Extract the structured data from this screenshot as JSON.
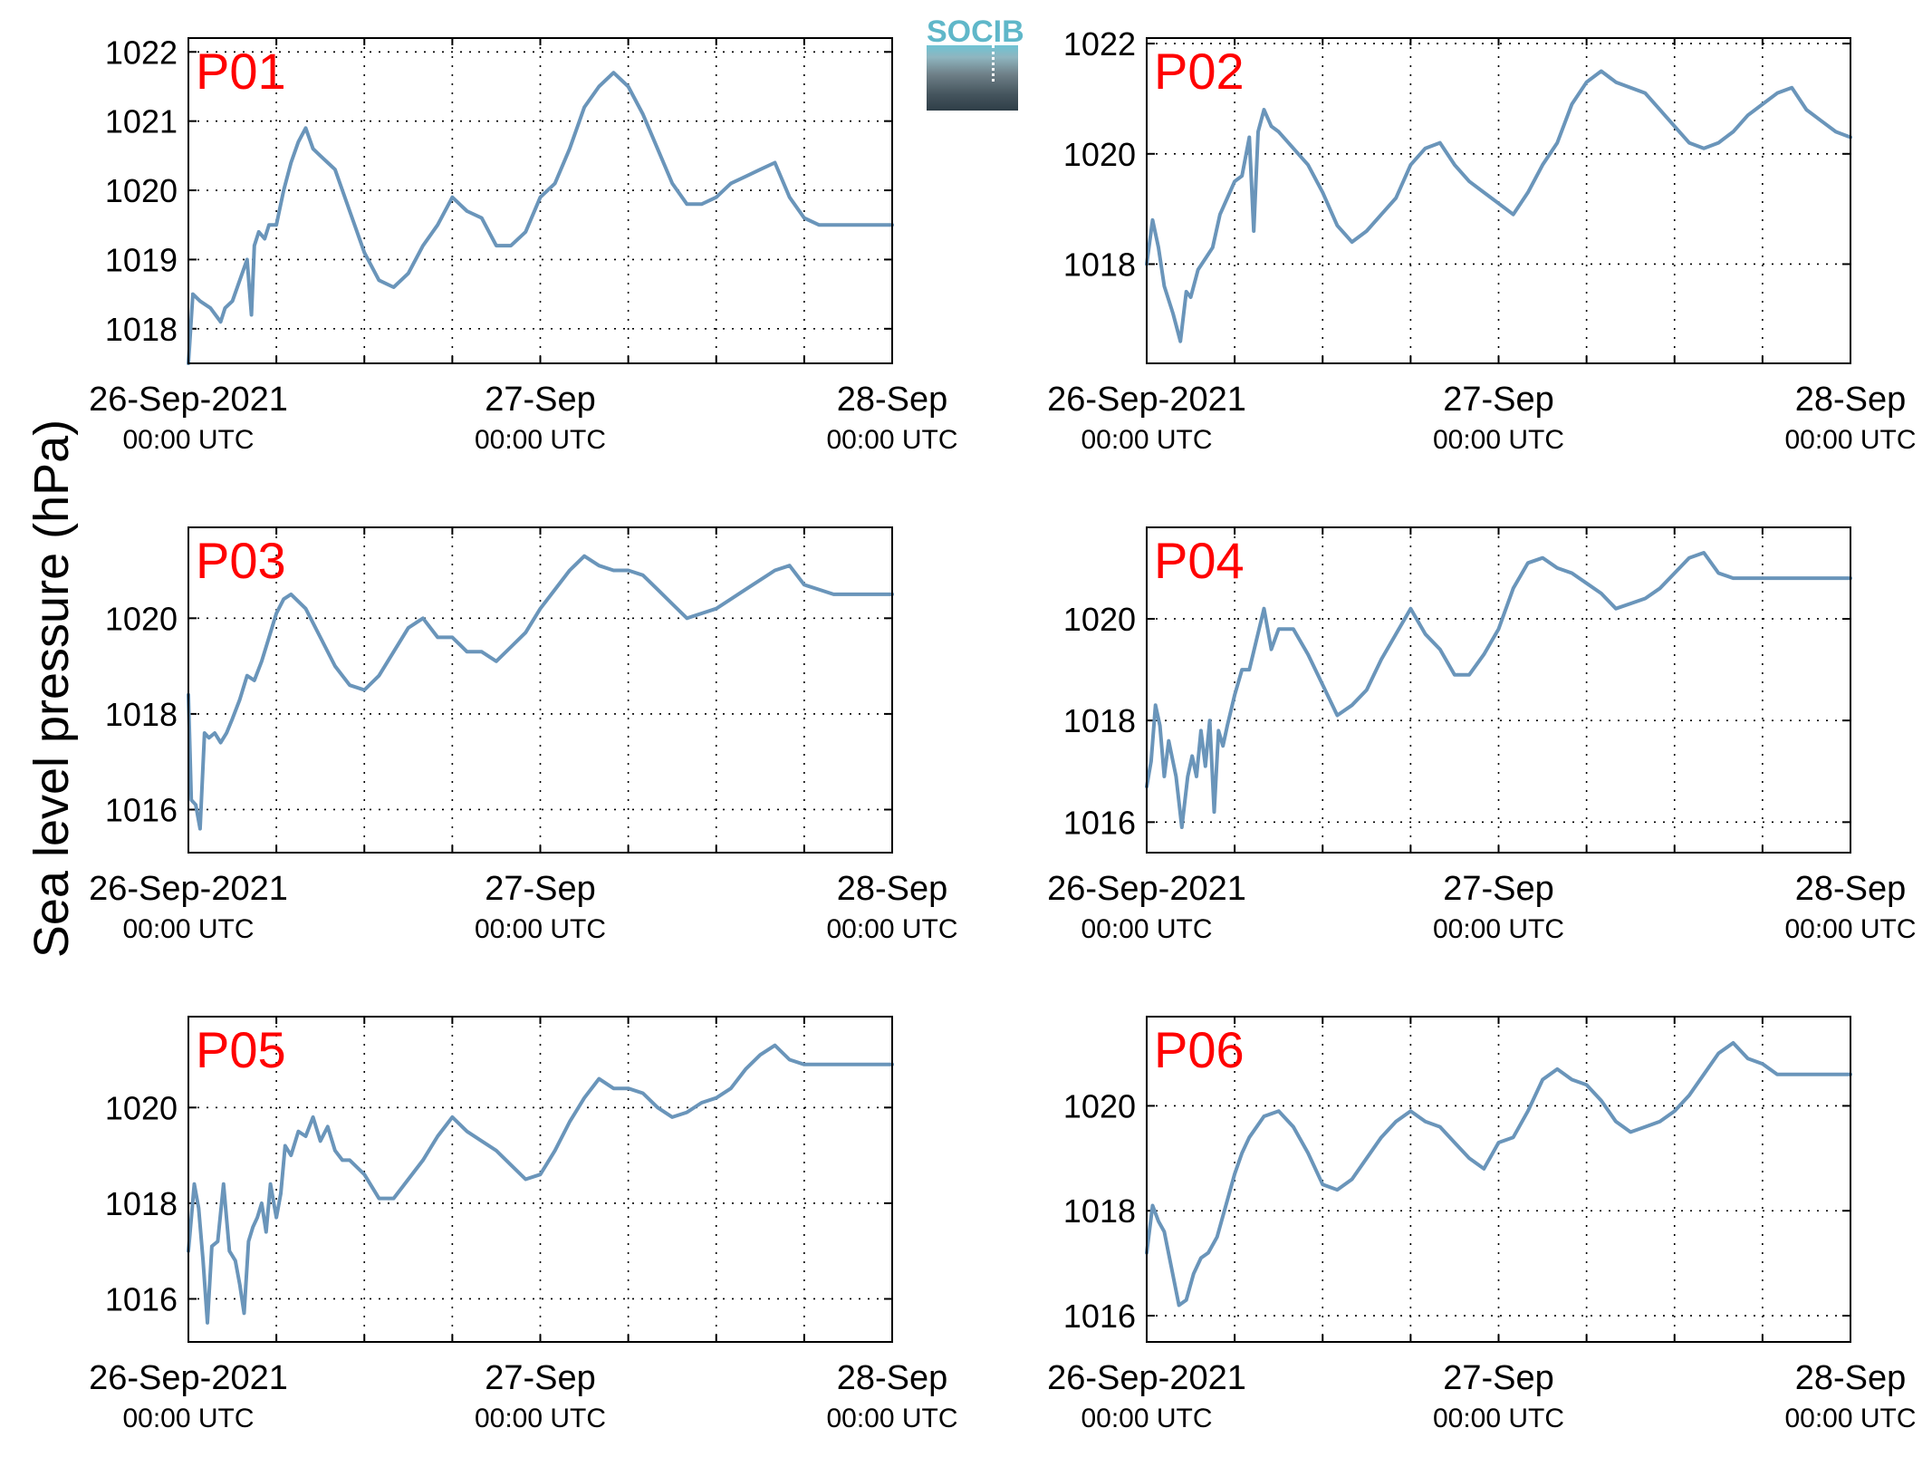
{
  "figure": {
    "ylabel": "Sea level pressure (hPa)",
    "logo_text": "SOCIB",
    "colors": {
      "series": "#6a95ba",
      "panel_label": "#ff0000",
      "axes": "#000000",
      "grid": "#000000"
    }
  },
  "chart_data": [
    {
      "type": "line",
      "label": "P01",
      "xlim": [
        0,
        48
      ],
      "ylim": [
        1017.5,
        1022.2
      ],
      "yticks": [
        1018,
        1019,
        1020,
        1021,
        1022
      ],
      "grid": true,
      "xticks": [
        {
          "x": 0,
          "label": "26-Sep-2021",
          "sublabel": "00:00 UTC"
        },
        {
          "x": 24,
          "label": "27-Sep",
          "sublabel": "00:00 UTC"
        },
        {
          "x": 48,
          "label": "28-Sep",
          "sublabel": "00:00 UTC"
        }
      ],
      "x": [
        0,
        0.3,
        0.8,
        1.5,
        2.2,
        2.5,
        3,
        3.5,
        4,
        4.3,
        4.5,
        4.8,
        5.2,
        5.5,
        6,
        6.5,
        7,
        7.5,
        8,
        8.5,
        9,
        9.5,
        10,
        10.5,
        11,
        12,
        13,
        14,
        15,
        16,
        17,
        18,
        19,
        20,
        21,
        22,
        23,
        24,
        25,
        26,
        27,
        28,
        29,
        30,
        31,
        32,
        33,
        34,
        35,
        36,
        37,
        38,
        39,
        40,
        41,
        42,
        43,
        44,
        45,
        46,
        47,
        48
      ],
      "y": [
        1017.5,
        1018.5,
        1018.4,
        1018.3,
        1018.1,
        1018.3,
        1018.4,
        1018.7,
        1019,
        1018.2,
        1019.2,
        1019.4,
        1019.3,
        1019.5,
        1019.5,
        1020,
        1020.4,
        1020.7,
        1020.9,
        1020.6,
        1020.5,
        1020.4,
        1020.3,
        1020,
        1019.7,
        1019.1,
        1018.7,
        1018.6,
        1018.8,
        1019.2,
        1019.5,
        1019.9,
        1019.7,
        1019.6,
        1019.2,
        1019.2,
        1019.4,
        1019.9,
        1020.1,
        1020.6,
        1021.2,
        1021.5,
        1021.7,
        1021.5,
        1021.1,
        1020.6,
        1020.1,
        1019.8,
        1019.8,
        1019.9,
        1020.1,
        1020.2,
        1020.3,
        1020.4,
        1019.9,
        1019.6,
        1019.5,
        1019.5,
        1019.5,
        1019.5,
        1019.5,
        1019.5
      ]
    },
    {
      "type": "line",
      "label": "P02",
      "xlim": [
        0,
        48
      ],
      "ylim": [
        1016.2,
        1022.1
      ],
      "yticks": [
        1018,
        1020,
        1022
      ],
      "grid": true,
      "xticks": [
        {
          "x": 0,
          "label": "26-Sep-2021",
          "sublabel": "00:00 UTC"
        },
        {
          "x": 24,
          "label": "27-Sep",
          "sublabel": "00:00 UTC"
        },
        {
          "x": 48,
          "label": "28-Sep",
          "sublabel": "00:00 UTC"
        }
      ],
      "x": [
        0,
        0.4,
        0.8,
        1.2,
        1.8,
        2.3,
        2.7,
        3,
        3.5,
        4,
        4.5,
        5,
        5.5,
        6,
        6.5,
        7,
        7.3,
        7.6,
        8,
        8.5,
        9,
        10,
        11,
        12,
        13,
        14,
        15,
        16,
        17,
        18,
        19,
        20,
        21,
        22,
        23,
        24,
        25,
        26,
        27,
        28,
        29,
        30,
        31,
        32,
        33,
        34,
        35,
        36,
        37,
        38,
        39,
        40,
        41,
        42,
        43,
        44,
        45,
        46,
        47,
        48
      ],
      "y": [
        1018,
        1018.8,
        1018.3,
        1017.6,
        1017.1,
        1016.6,
        1017.5,
        1017.4,
        1017.9,
        1018.1,
        1018.3,
        1018.9,
        1019.2,
        1019.5,
        1019.6,
        1020.3,
        1018.6,
        1020.4,
        1020.8,
        1020.5,
        1020.4,
        1020.1,
        1019.8,
        1019.3,
        1018.7,
        1018.4,
        1018.6,
        1018.9,
        1019.2,
        1019.8,
        1020.1,
        1020.2,
        1019.8,
        1019.5,
        1019.3,
        1019.1,
        1018.9,
        1019.3,
        1019.8,
        1020.2,
        1020.9,
        1021.3,
        1021.5,
        1021.3,
        1021.2,
        1021.1,
        1020.8,
        1020.5,
        1020.2,
        1020.1,
        1020.2,
        1020.4,
        1020.7,
        1020.9,
        1021.1,
        1021.2,
        1020.8,
        1020.6,
        1020.4,
        1020.3
      ]
    },
    {
      "type": "line",
      "label": "P03",
      "xlim": [
        0,
        48
      ],
      "ylim": [
        1015.1,
        1021.9
      ],
      "yticks": [
        1016,
        1018,
        1020
      ],
      "grid": true,
      "xticks": [
        {
          "x": 0,
          "label": "26-Sep-2021",
          "sublabel": "00:00 UTC"
        },
        {
          "x": 24,
          "label": "27-Sep",
          "sublabel": "00:00 UTC"
        },
        {
          "x": 48,
          "label": "28-Sep",
          "sublabel": "00:00 UTC"
        }
      ],
      "x": [
        0,
        0.2,
        0.5,
        0.8,
        1.1,
        1.4,
        1.8,
        2.2,
        2.6,
        3,
        3.5,
        4,
        4.5,
        5,
        5.5,
        6,
        6.5,
        7,
        8,
        9,
        10,
        11,
        12,
        13,
        14,
        15,
        16,
        17,
        18,
        19,
        20,
        21,
        22,
        23,
        24,
        25,
        26,
        27,
        28,
        29,
        30,
        31,
        32,
        33,
        34,
        35,
        36,
        37,
        38,
        39,
        40,
        41,
        42,
        43,
        44,
        45,
        46,
        47,
        48
      ],
      "y": [
        1018.4,
        1016.2,
        1016.1,
        1015.6,
        1017.6,
        1017.5,
        1017.6,
        1017.4,
        1017.6,
        1017.9,
        1018.3,
        1018.8,
        1018.7,
        1019.1,
        1019.6,
        1020.1,
        1020.4,
        1020.5,
        1020.2,
        1019.6,
        1019,
        1018.6,
        1018.5,
        1018.8,
        1019.3,
        1019.8,
        1020,
        1019.6,
        1019.6,
        1019.3,
        1019.3,
        1019.1,
        1019.4,
        1019.7,
        1020.2,
        1020.6,
        1021,
        1021.3,
        1021.1,
        1021,
        1021,
        1020.9,
        1020.6,
        1020.3,
        1020,
        1020.1,
        1020.2,
        1020.4,
        1020.6,
        1020.8,
        1021,
        1021.1,
        1020.7,
        1020.6,
        1020.5,
        1020.5,
        1020.5,
        1020.5,
        1020.5
      ]
    },
    {
      "type": "line",
      "label": "P04",
      "xlim": [
        0,
        48
      ],
      "ylim": [
        1015.4,
        1021.8
      ],
      "yticks": [
        1016,
        1018,
        1020
      ],
      "grid": true,
      "xticks": [
        {
          "x": 0,
          "label": "26-Sep-2021",
          "sublabel": "00:00 UTC"
        },
        {
          "x": 24,
          "label": "27-Sep",
          "sublabel": "00:00 UTC"
        },
        {
          "x": 48,
          "label": "28-Sep",
          "sublabel": "00:00 UTC"
        }
      ],
      "x": [
        0,
        0.3,
        0.6,
        0.9,
        1.2,
        1.5,
        2,
        2.4,
        2.8,
        3.1,
        3.4,
        3.7,
        4,
        4.3,
        4.6,
        4.9,
        5.2,
        5.5,
        6,
        6.5,
        7,
        7.5,
        8,
        8.5,
        9,
        10,
        11,
        12,
        13,
        14,
        15,
        16,
        17,
        18,
        19,
        20,
        21,
        22,
        23,
        24,
        25,
        26,
        27,
        28,
        29,
        30,
        31,
        32,
        33,
        34,
        35,
        36,
        37,
        38,
        39,
        40,
        41,
        42,
        43,
        44,
        45,
        46,
        47,
        48
      ],
      "y": [
        1016.7,
        1017.2,
        1018.3,
        1017.9,
        1016.9,
        1017.6,
        1016.9,
        1015.9,
        1016.9,
        1017.3,
        1016.9,
        1017.8,
        1017.1,
        1018,
        1016.2,
        1017.8,
        1017.5,
        1017.9,
        1018.5,
        1019,
        1019,
        1019.6,
        1020.2,
        1019.4,
        1019.8,
        1019.8,
        1019.3,
        1018.7,
        1018.1,
        1018.3,
        1018.6,
        1019.2,
        1019.7,
        1020.2,
        1019.7,
        1019.4,
        1018.9,
        1018.9,
        1019.3,
        1019.8,
        1020.6,
        1021.1,
        1021.2,
        1021,
        1020.9,
        1020.7,
        1020.5,
        1020.2,
        1020.3,
        1020.4,
        1020.6,
        1020.9,
        1021.2,
        1021.3,
        1020.9,
        1020.8,
        1020.8,
        1020.8,
        1020.8,
        1020.8,
        1020.8,
        1020.8,
        1020.8,
        1020.8
      ]
    },
    {
      "type": "line",
      "label": "P05",
      "xlim": [
        0,
        48
      ],
      "ylim": [
        1015.1,
        1021.9
      ],
      "yticks": [
        1016,
        1018,
        1020
      ],
      "grid": true,
      "xticks": [
        {
          "x": 0,
          "label": "26-Sep-2021",
          "sublabel": "00:00 UTC"
        },
        {
          "x": 24,
          "label": "27-Sep",
          "sublabel": "00:00 UTC"
        },
        {
          "x": 48,
          "label": "28-Sep",
          "sublabel": "00:00 UTC"
        }
      ],
      "x": [
        0,
        0.4,
        0.7,
        1,
        1.3,
        1.6,
        2,
        2.4,
        2.8,
        3.2,
        3.5,
        3.8,
        4.1,
        4.4,
        4.7,
        5,
        5.3,
        5.6,
        6,
        6.3,
        6.6,
        7,
        7.5,
        8,
        8.5,
        9,
        9.5,
        10,
        10.5,
        11,
        12,
        13,
        14,
        15,
        16,
        17,
        18,
        19,
        20,
        21,
        22,
        23,
        24,
        25,
        26,
        27,
        28,
        29,
        30,
        31,
        32,
        33,
        34,
        35,
        36,
        37,
        38,
        39,
        40,
        41,
        42,
        43,
        44,
        45,
        46,
        47,
        48
      ],
      "y": [
        1017,
        1018.4,
        1017.9,
        1016.8,
        1015.5,
        1017.1,
        1017.2,
        1018.4,
        1017,
        1016.8,
        1016.3,
        1015.7,
        1017.2,
        1017.5,
        1017.7,
        1018,
        1017.4,
        1018.4,
        1017.7,
        1018.2,
        1019.2,
        1019,
        1019.5,
        1019.4,
        1019.8,
        1019.3,
        1019.6,
        1019.1,
        1018.9,
        1018.9,
        1018.6,
        1018.1,
        1018.1,
        1018.5,
        1018.9,
        1019.4,
        1019.8,
        1019.5,
        1019.3,
        1019.1,
        1018.8,
        1018.5,
        1018.6,
        1019.1,
        1019.7,
        1020.2,
        1020.6,
        1020.4,
        1020.4,
        1020.3,
        1020,
        1019.8,
        1019.9,
        1020.1,
        1020.2,
        1020.4,
        1020.8,
        1021.1,
        1021.3,
        1021,
        1020.9,
        1020.9,
        1020.9,
        1020.9,
        1020.9,
        1020.9,
        1020.9
      ]
    },
    {
      "type": "line",
      "label": "P06",
      "xlim": [
        0,
        48
      ],
      "ylim": [
        1015.5,
        1021.7
      ],
      "yticks": [
        1016,
        1018,
        1020
      ],
      "grid": true,
      "xticks": [
        {
          "x": 0,
          "label": "26-Sep-2021",
          "sublabel": "00:00 UTC"
        },
        {
          "x": 24,
          "label": "27-Sep",
          "sublabel": "00:00 UTC"
        },
        {
          "x": 48,
          "label": "28-Sep",
          "sublabel": "00:00 UTC"
        }
      ],
      "x": [
        0,
        0.4,
        0.8,
        1.2,
        1.7,
        2.2,
        2.7,
        3.2,
        3.7,
        4.2,
        4.8,
        5.5,
        6,
        6.5,
        7,
        8,
        9,
        10,
        11,
        12,
        13,
        14,
        15,
        16,
        17,
        18,
        19,
        20,
        21,
        22,
        23,
        24,
        25,
        26,
        27,
        28,
        29,
        30,
        31,
        32,
        33,
        34,
        35,
        36,
        37,
        38,
        39,
        40,
        41,
        42,
        43,
        44,
        45,
        46,
        47,
        48
      ],
      "y": [
        1017.2,
        1018.1,
        1017.8,
        1017.6,
        1016.9,
        1016.2,
        1016.3,
        1016.8,
        1017.1,
        1017.2,
        1017.5,
        1018.2,
        1018.7,
        1019.1,
        1019.4,
        1019.8,
        1019.9,
        1019.6,
        1019.1,
        1018.5,
        1018.4,
        1018.6,
        1019,
        1019.4,
        1019.7,
        1019.9,
        1019.7,
        1019.6,
        1019.3,
        1019,
        1018.8,
        1019.3,
        1019.4,
        1019.9,
        1020.5,
        1020.7,
        1020.5,
        1020.4,
        1020.1,
        1019.7,
        1019.5,
        1019.6,
        1019.7,
        1019.9,
        1020.2,
        1020.6,
        1021,
        1021.2,
        1020.9,
        1020.8,
        1020.6,
        1020.6,
        1020.6,
        1020.6,
        1020.6,
        1020.6
      ]
    }
  ]
}
